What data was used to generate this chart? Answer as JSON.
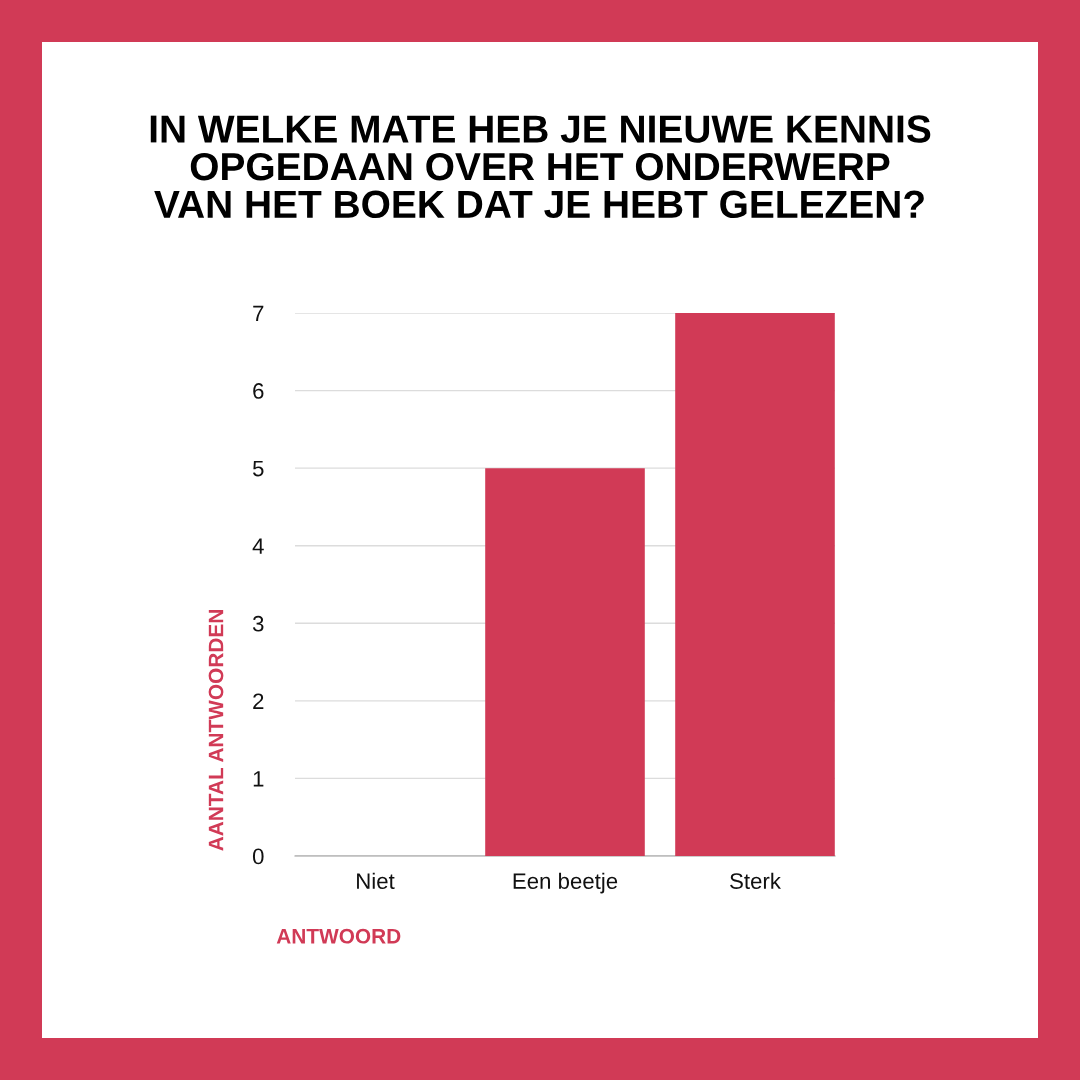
{
  "chart_data": {
    "type": "bar",
    "title": "IN WELKE MATE HEB JE NIEUWE KENNIS\nOPGEDAAN OVER HET ONDERWERP\nVAN HET BOEK DAT JE HEBT GELEZEN?",
    "xlabel": "ANTWOORD",
    "ylabel": "AANTAL ANTWOORDEN",
    "categories": [
      "Niet",
      "Een beetje",
      "Sterk"
    ],
    "values": [
      0,
      5,
      7
    ],
    "color": "#d13a56",
    "ylim": [
      0,
      7
    ],
    "yticks": [
      0,
      1,
      2,
      3,
      4,
      5,
      6,
      7
    ],
    "grid": "y"
  }
}
